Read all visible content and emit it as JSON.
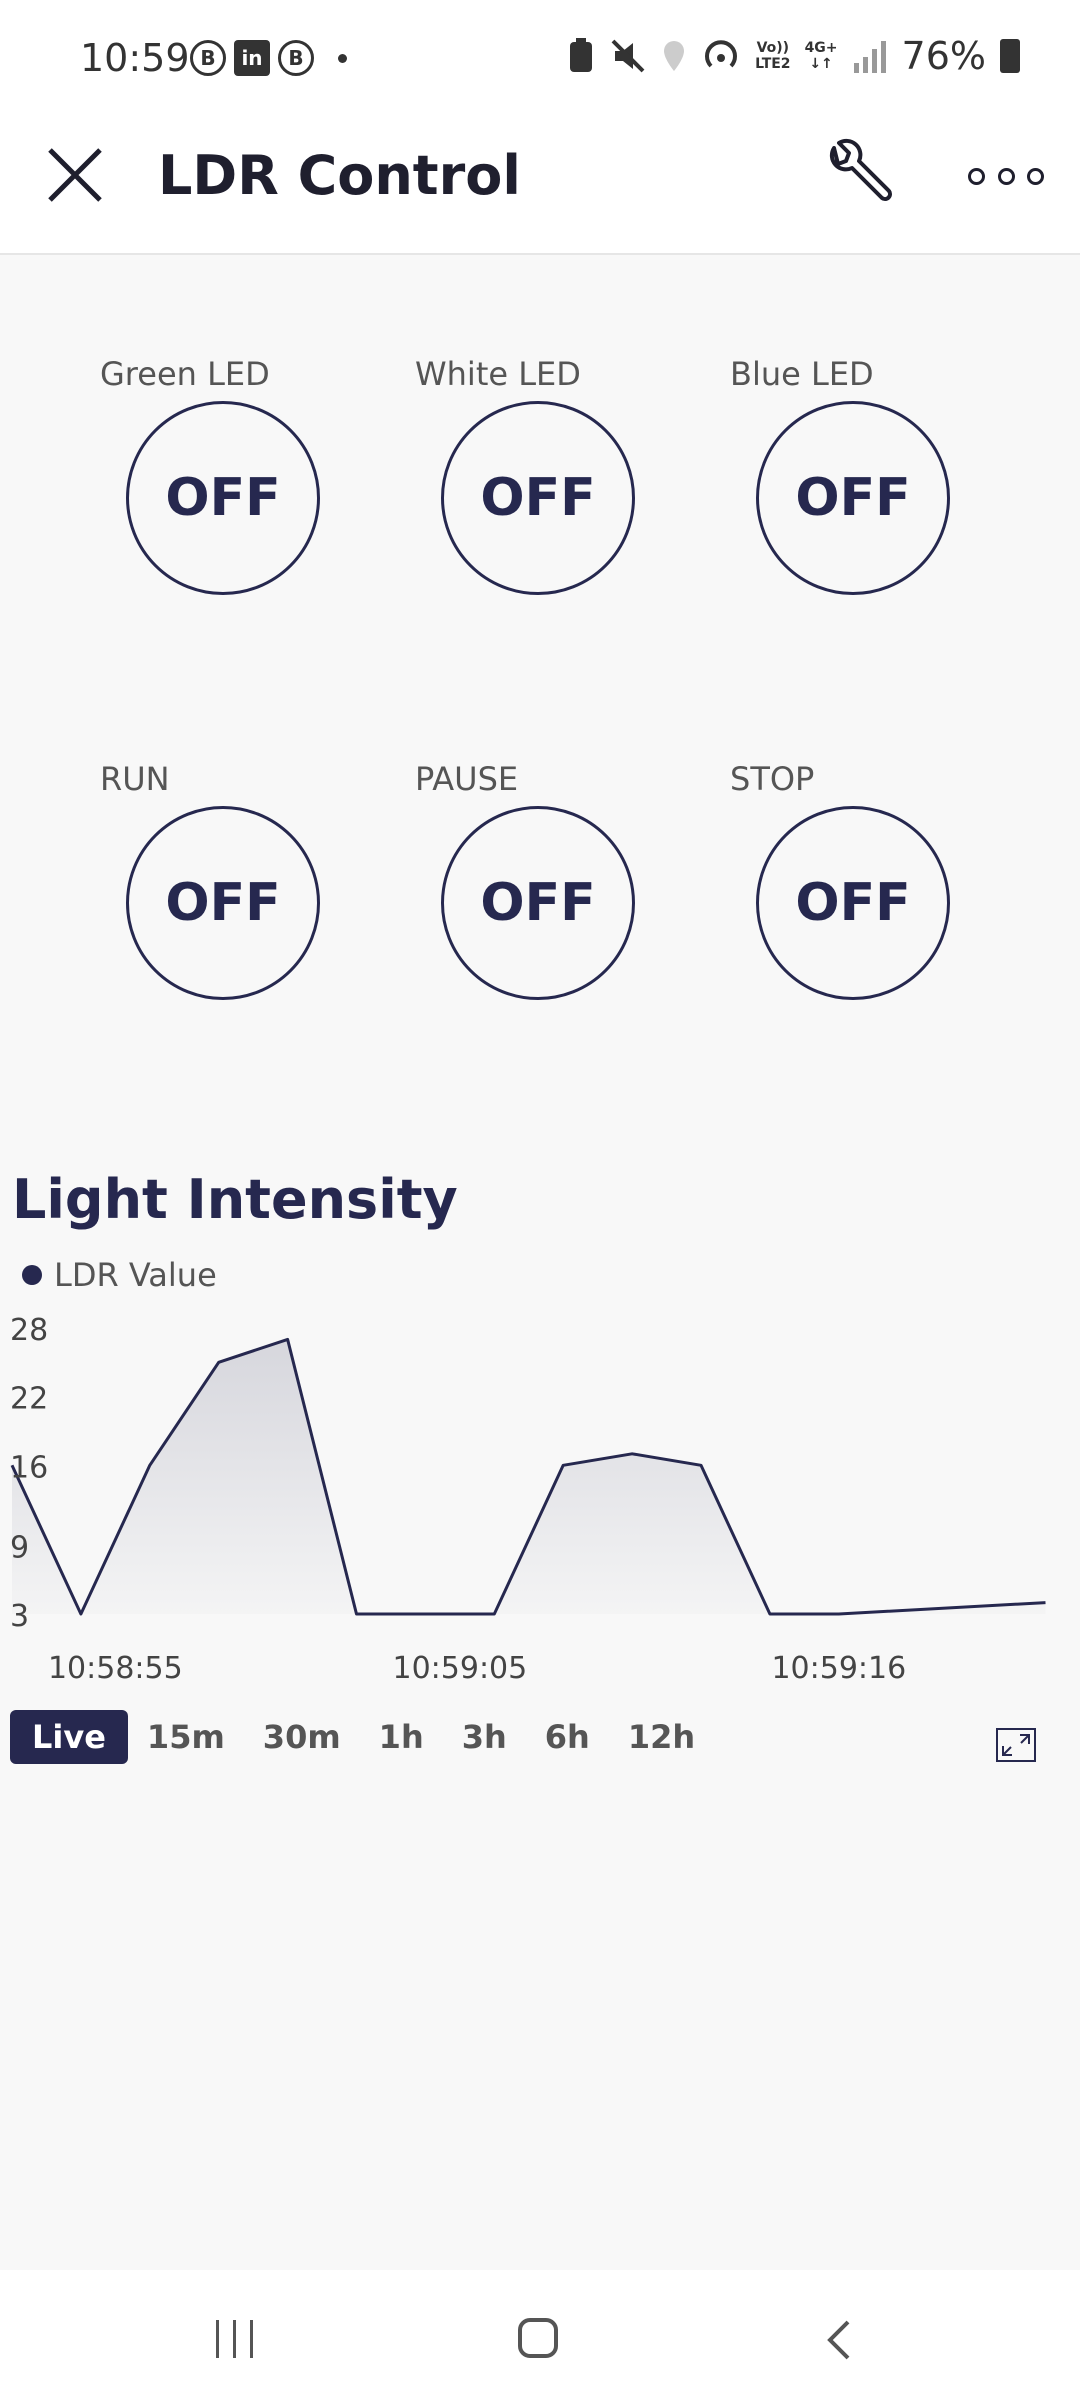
{
  "status_bar": {
    "time": "10:59",
    "network_top": "Vo))",
    "network_bottom": "LTE2",
    "data_top": "4G+",
    "data_bottom": "↓↑",
    "battery": "76%"
  },
  "app_bar": {
    "title": "LDR Control"
  },
  "switches": [
    {
      "label": "Green LED",
      "state": "OFF"
    },
    {
      "label": "White LED",
      "state": "OFF"
    },
    {
      "label": "Blue LED",
      "state": "OFF"
    },
    {
      "label": "RUN",
      "state": "OFF"
    },
    {
      "label": "PAUSE",
      "state": "OFF"
    },
    {
      "label": "STOP",
      "state": "OFF"
    }
  ],
  "chart": {
    "title": "Light Intensity",
    "legend": "LDR Value"
  },
  "chart_data": {
    "type": "area",
    "series": [
      {
        "name": "LDR Value",
        "x": [
          "10:58:52",
          "10:58:54",
          "10:58:56",
          "10:58:58",
          "10:59:00",
          "10:59:02",
          "10:59:04",
          "10:59:06",
          "10:59:08",
          "10:59:10",
          "10:59:12",
          "10:59:14",
          "10:59:16",
          "10:59:22"
        ],
        "values": [
          16,
          3,
          16,
          25,
          27,
          3,
          3,
          3,
          16,
          17,
          16,
          3,
          3,
          4
        ]
      }
    ],
    "yticks": [
      "28",
      "22",
      "16",
      "9",
      "3"
    ],
    "xticks": [
      "10:58:55",
      "10:59:05",
      "10:59:16"
    ],
    "ylim": [
      3,
      28
    ],
    "grid": false,
    "legend_position": "top-left"
  },
  "time_ranges": {
    "items": [
      "Live",
      "15m",
      "30m",
      "1h",
      "3h",
      "6h",
      "12h"
    ],
    "active": "Live"
  },
  "colors": {
    "accent": "#26284f",
    "background": "#f8f8f8"
  }
}
